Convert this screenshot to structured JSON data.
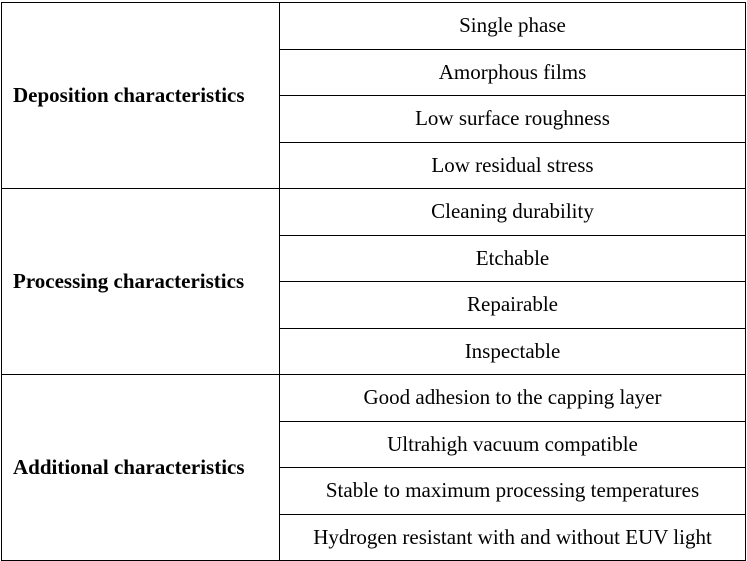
{
  "groups": [
    {
      "label": "Deposition characteristics",
      "items": [
        "Single phase",
        "Amorphous films",
        "Low surface roughness",
        "Low residual stress"
      ]
    },
    {
      "label": "Processing characteristics",
      "items": [
        "Cleaning durability",
        "Etchable",
        "Repairable",
        "Inspectable"
      ]
    },
    {
      "label": "Additional characteristics",
      "items": [
        "Good adhesion to the capping layer",
        "Ultrahigh vacuum compatible",
        "Stable to maximum processing temperatures",
        "Hydrogen resistant with and without EUV light"
      ]
    }
  ]
}
